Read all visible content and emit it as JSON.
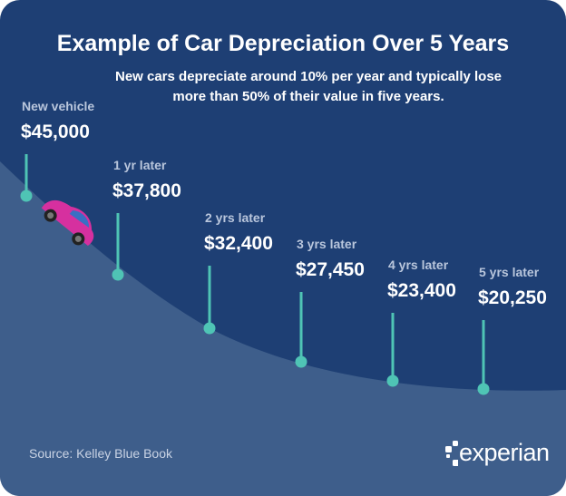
{
  "title": "Example of Car Depreciation Over 5 Years",
  "subtitle": "New cars depreciate around 10% per year and typically lose more than 50% of their value in five years.",
  "source": "Source: Kelley Blue Book",
  "logo_text": "experian",
  "colors": {
    "background": "#1e3f74",
    "hill": "#3e5e8b",
    "marker": "#4fc4b5",
    "car": "#d6309f"
  },
  "chart_data": {
    "type": "line",
    "title": "Example of Car Depreciation Over 5 Years",
    "categories": [
      "New vehicle",
      "1 yr later",
      "2 yrs later",
      "3 yrs later",
      "4 yrs later",
      "5 yrs later"
    ],
    "values": [
      45000,
      37800,
      32400,
      27450,
      23400,
      20250
    ],
    "value_labels": [
      "$45,000",
      "$37,800",
      "$32,400",
      "$27,450",
      "$23,400",
      "$20,250"
    ]
  }
}
